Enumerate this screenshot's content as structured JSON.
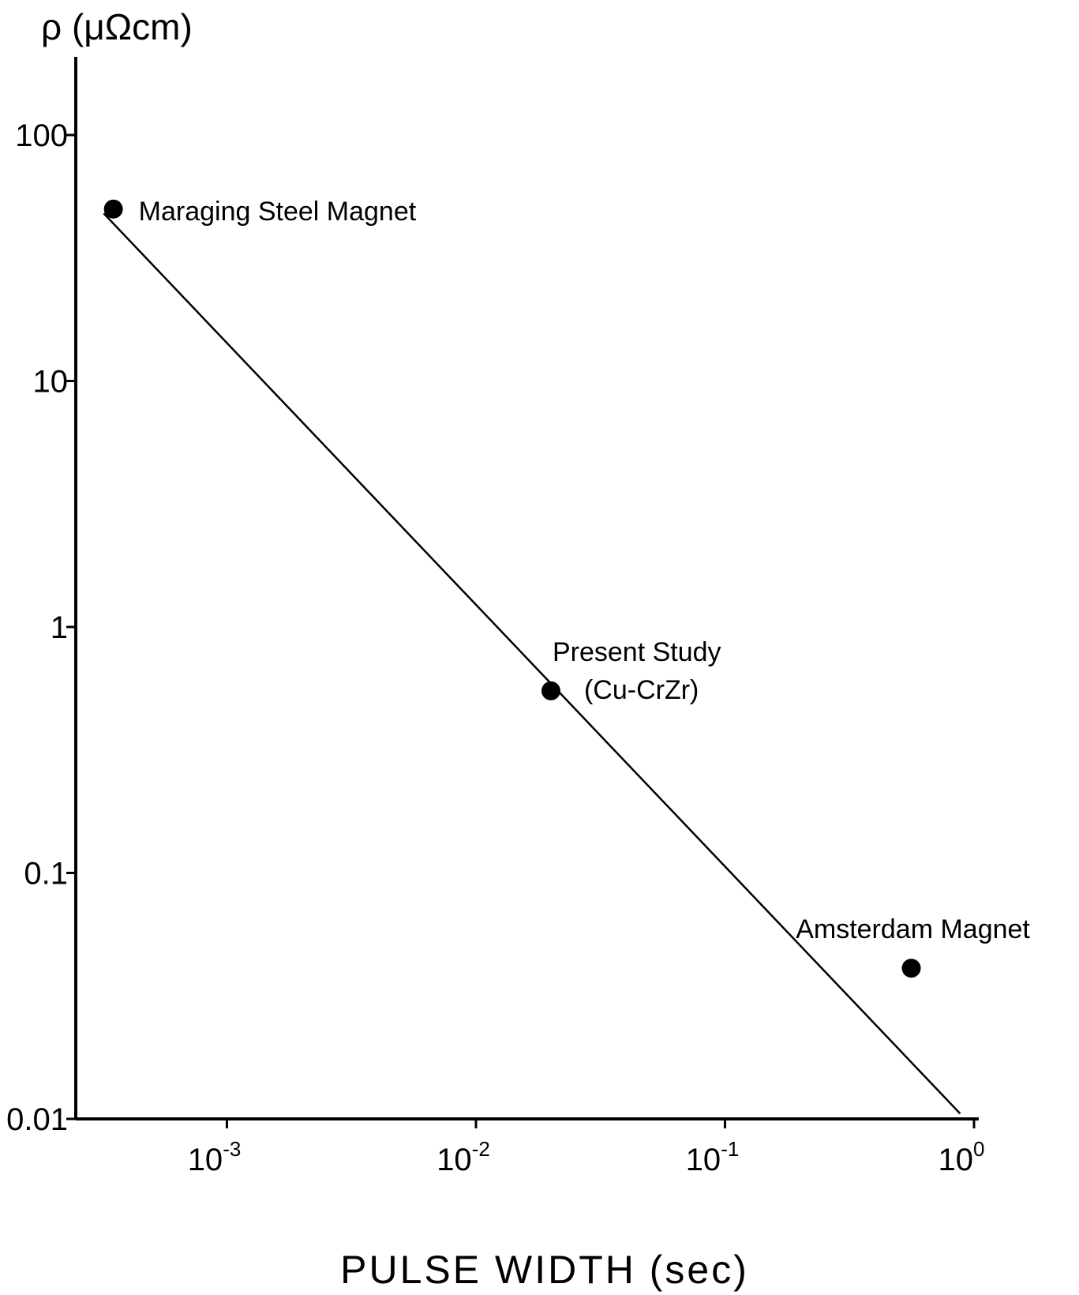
{
  "chart_data": {
    "type": "scatter",
    "ylabel": "ρ (μΩcm)",
    "xlabel": "PULSE WIDTH (sec)",
    "x_scale": "log",
    "y_scale": "log",
    "xlim": [
      0.0003,
      1
    ],
    "ylim": [
      0.01,
      300
    ],
    "y_ticks": [
      {
        "value": 100,
        "label": "100"
      },
      {
        "value": 10,
        "label": "10"
      },
      {
        "value": 1,
        "label": "1"
      },
      {
        "value": 0.1,
        "label": "0.1"
      },
      {
        "value": 0.01,
        "label": "0.01"
      }
    ],
    "x_ticks": [
      {
        "value": 0.001,
        "base": "10",
        "exp": "-3"
      },
      {
        "value": 0.01,
        "base": "10",
        "exp": "-2"
      },
      {
        "value": 0.1,
        "base": "10",
        "exp": "-1"
      },
      {
        "value": 1,
        "base": "10",
        "exp": "0"
      }
    ],
    "points": [
      {
        "x": 0.00035,
        "y": 50,
        "label": [
          "Maraging Steel Magnet"
        ],
        "label_pos": "right"
      },
      {
        "x": 0.02,
        "y": 0.55,
        "label": [
          "Present Study",
          "(Cu-CrZr)"
        ],
        "label_pos": "upper-right"
      },
      {
        "x": 0.56,
        "y": 0.041,
        "label": [
          "Amsterdam Magnet"
        ],
        "label_pos": "above"
      }
    ],
    "trend_line": {
      "x": [
        0.00032,
        0.88
      ],
      "y": [
        48,
        0.0105
      ]
    },
    "grid": false,
    "legend": "none"
  }
}
